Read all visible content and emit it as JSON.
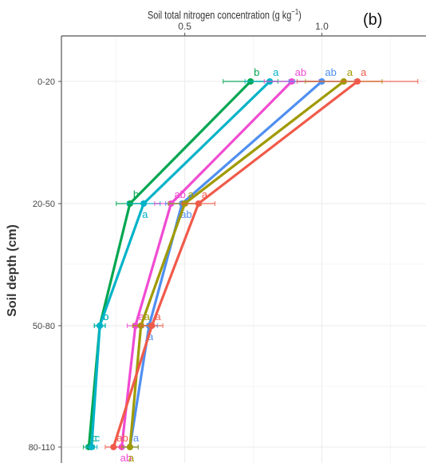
{
  "chart_data": {
    "type": "line",
    "panel_label": "(b)",
    "xlabel_text": "Soil total nitrogen concentration (g kg",
    "xlabel_sup": "−1",
    "xlabel_close": ")",
    "ylabel": "Soil depth (cm)",
    "x_ticks": [
      0.5,
      1.0
    ],
    "x_tick_labels": [
      "0.5",
      "1.0"
    ],
    "xlim": [
      0.05,
      1.38
    ],
    "grid": true,
    "y_categories": [
      "0-20",
      "20-50",
      "50-80",
      "80-110"
    ],
    "series": [
      {
        "color": "#00A650",
        "values": [
          0.74,
          0.3,
          0.19,
          0.15
        ],
        "errors": [
          0.1,
          0.05,
          0.02,
          0.02
        ],
        "letters": [
          "b",
          "b",
          "b",
          "c"
        ]
      },
      {
        "color": "#00B3C8",
        "values": [
          0.81,
          0.35,
          0.19,
          0.16
        ],
        "errors": [
          0.09,
          0.06,
          0.02,
          0.02
        ],
        "letters": [
          "a",
          "a",
          "b",
          "c"
        ]
      },
      {
        "color": "#F04BD2",
        "values": [
          0.89,
          0.45,
          0.32,
          0.27
        ],
        "errors": [
          0.1,
          0.06,
          0.03,
          0.03
        ],
        "letters": [
          "ab",
          "ab",
          "a",
          "ab"
        ]
      },
      {
        "color": "#4F8FF0",
        "values": [
          1.0,
          0.49,
          0.37,
          0.3
        ],
        "errors": [
          0.12,
          0.06,
          0.03,
          0.03
        ],
        "letters": [
          "ab",
          "ab",
          "a",
          "a"
        ]
      },
      {
        "color": "#A09A00",
        "values": [
          1.08,
          0.5,
          0.34,
          0.3
        ],
        "errors": [
          0.14,
          0.06,
          0.03,
          0.03
        ],
        "letters": [
          "a",
          "a",
          "a",
          "a"
        ]
      },
      {
        "color": "#F05A4A",
        "values": [
          1.13,
          0.55,
          0.38,
          0.24
        ],
        "errors": [
          0.22,
          0.06,
          0.04,
          0.03
        ],
        "letters": [
          "a",
          "a",
          "a",
          "ab"
        ]
      }
    ]
  }
}
